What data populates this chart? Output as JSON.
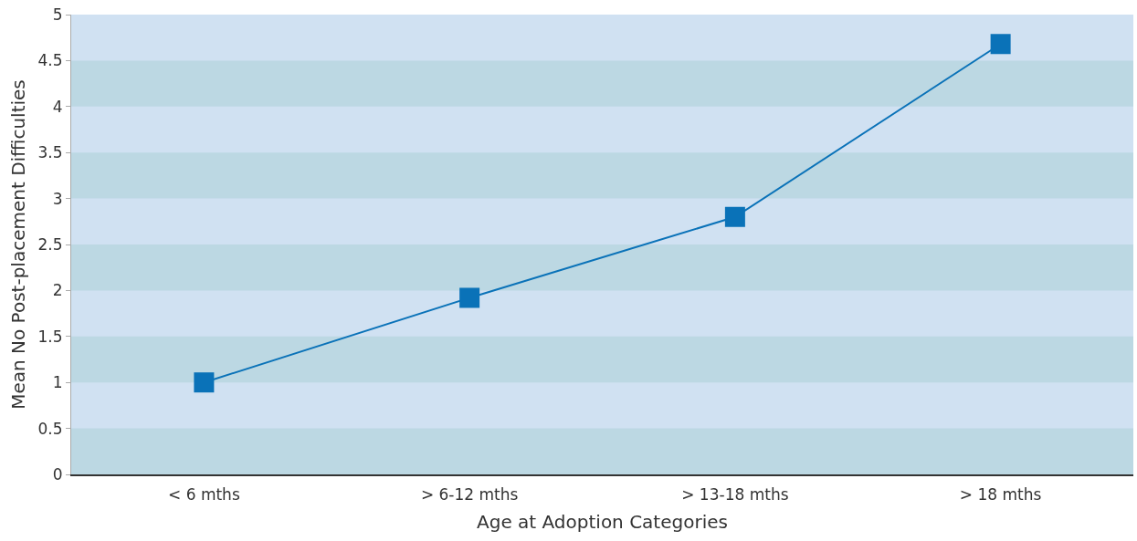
{
  "chart_data": {
    "type": "line",
    "xlabel": "Age at Adoption Categories",
    "ylabel": "Mean No Post-placement Difficulties",
    "categories": [
      "< 6 mths",
      "> 6-12 mths",
      "> 13-18 mths",
      "> 18 mths"
    ],
    "series": [
      {
        "color": "#0a72b8",
        "values": [
          1.0,
          1.92,
          2.8,
          4.68
        ]
      }
    ],
    "ylim": [
      0,
      5
    ],
    "yticks": [
      0,
      0.5,
      1,
      1.5,
      2,
      2.5,
      3,
      3.5,
      4,
      4.5,
      5
    ],
    "bands": [
      {
        "axis": "y",
        "from": 0,
        "to": 0.5,
        "color": "#bcd8e3"
      },
      {
        "axis": "y",
        "from": 1,
        "to": 1.5,
        "color": "#bcd8e3"
      },
      {
        "axis": "y",
        "from": 2,
        "to": 2.5,
        "color": "#bcd8e3"
      },
      {
        "axis": "y",
        "from": 3,
        "to": 3.5,
        "color": "#bcd8e3"
      },
      {
        "axis": "y",
        "from": 4,
        "to": 4.5,
        "color": "#bcd8e3"
      }
    ],
    "grid": false,
    "legend": false,
    "marker": "square",
    "line_style": "solid"
  }
}
